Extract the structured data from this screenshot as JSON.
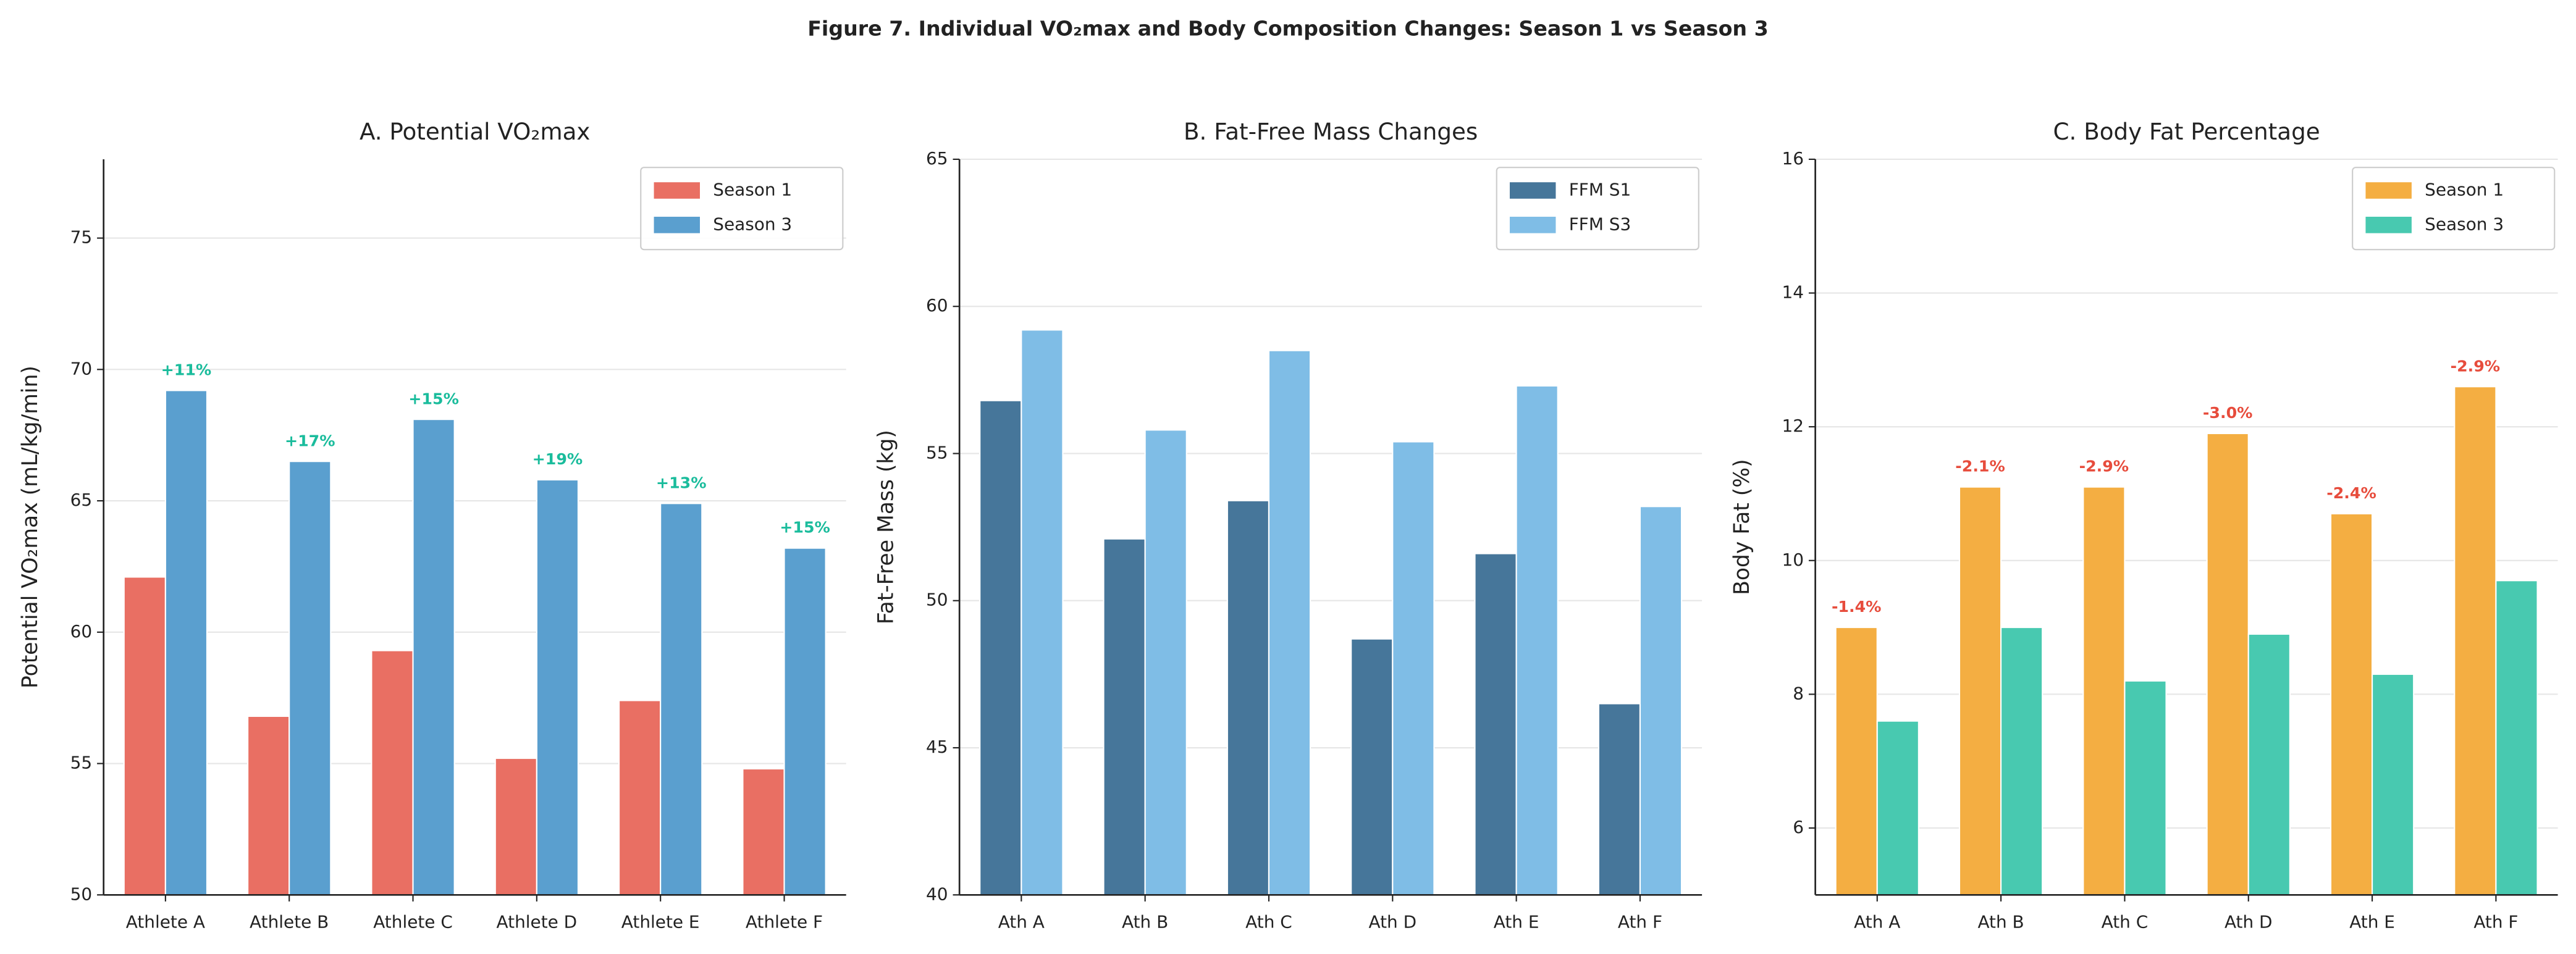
{
  "title": "Figure 7. Individual VO₂max and Body Composition Changes: Season 1 vs Season 3",
  "chart_data": [
    {
      "type": "bar",
      "title": "A. Potential VO₂max",
      "y_label": "Potential VO₂max (mL/kg/min)",
      "categories": [
        "Athlete A",
        "Athlete B",
        "Athlete C",
        "Athlete D",
        "Athlete E",
        "Athlete F"
      ],
      "series": [
        {
          "name": "Season 1",
          "color": "#e96f63",
          "values": [
            62.1,
            56.8,
            59.3,
            55.2,
            57.4,
            54.8
          ]
        },
        {
          "name": "Season 3",
          "color": "#5a9fcf",
          "values": [
            69.2,
            66.5,
            68.1,
            65.8,
            64.9,
            63.2
          ]
        }
      ],
      "annotations": [
        "+11%",
        "+17%",
        "+15%",
        "+19%",
        "+13%",
        "+15%"
      ],
      "annotation_color": "#1abc9c",
      "ylim": [
        50,
        78
      ],
      "yticks": [
        50,
        55,
        60,
        65,
        70,
        75
      ],
      "grid": true,
      "legend": "upper right"
    },
    {
      "type": "bar",
      "title": "B. Fat-Free Mass Changes",
      "y_label": "Fat-Free Mass (kg)",
      "categories": [
        "Ath A",
        "Ath B",
        "Ath C",
        "Ath D",
        "Ath E",
        "Ath F"
      ],
      "series": [
        {
          "name": "FFM S1",
          "color": "#46769a",
          "values": [
            56.8,
            52.1,
            53.4,
            48.7,
            51.6,
            46.5
          ]
        },
        {
          "name": "FFM S3",
          "color": "#7fbde6",
          "values": [
            59.2,
            55.8,
            58.5,
            55.4,
            57.3,
            53.2
          ]
        }
      ],
      "ylim": [
        40,
        65
      ],
      "yticks": [
        40,
        45,
        50,
        55,
        60,
        65
      ],
      "grid": true,
      "legend": "upper right"
    },
    {
      "type": "bar",
      "title": "C. Body Fat Percentage",
      "y_label": "Body Fat (%)",
      "categories": [
        "Ath A",
        "Ath B",
        "Ath C",
        "Ath D",
        "Ath E",
        "Ath F"
      ],
      "series": [
        {
          "name": "Season 1",
          "color": "#f4ae42",
          "values": [
            9.0,
            11.1,
            11.1,
            11.9,
            10.7,
            12.6
          ]
        },
        {
          "name": "Season 3",
          "color": "#48c9b0",
          "values": [
            7.6,
            9.0,
            8.2,
            8.9,
            8.3,
            9.7
          ]
        }
      ],
      "annotations": [
        "-1.4%",
        "-2.1%",
        "-2.9%",
        "-3.0%",
        "-2.4%",
        "-2.9%"
      ],
      "annotation_color": "#e74c3c",
      "ylim": [
        5,
        16
      ],
      "yticks": [
        6,
        8,
        10,
        12,
        14,
        16
      ],
      "grid": true,
      "legend": "upper right"
    }
  ]
}
